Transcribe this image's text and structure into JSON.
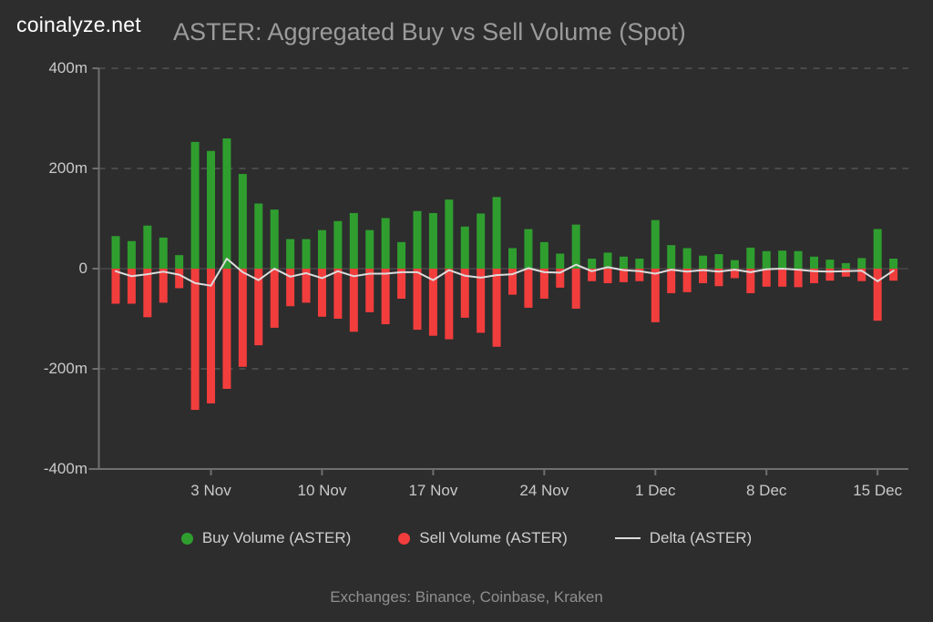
{
  "header": {
    "logo": "coinalyze.net",
    "title": "ASTER: Aggregated Buy vs Sell Volume (Spot)"
  },
  "legend": {
    "buy": "Buy Volume (ASTER)",
    "sell": "Sell Volume (ASTER)",
    "delta": "Delta (ASTER)"
  },
  "footer": {
    "exchanges_note": "Exchanges: Binance, Coinbase, Kraken"
  },
  "colors": {
    "background": "#2d2d2d",
    "buy": "#2f9e2f",
    "sell": "#f23d3d",
    "delta_line": "#dcdcdc",
    "grid_dashed": "#4a4a4a",
    "zero_line": "#484848",
    "axis": "#6f6f6f",
    "logo_text": "#ffffff",
    "title_text": "#9b9b9b",
    "axis_text": "#c9c9c9",
    "legend_text": "#cfcfcf",
    "footer_text": "#8f8f8f"
  },
  "chart_data": {
    "type": "bar",
    "title": "ASTER: Aggregated Buy vs Sell Volume (Spot)",
    "unit": "millions",
    "ylim": [
      -400,
      400
    ],
    "grid": "horizontal-dashed",
    "legend_position": "bottom",
    "y_ticks": [
      {
        "value": 400,
        "label": "400m"
      },
      {
        "value": 200,
        "label": "200m"
      },
      {
        "value": 0,
        "label": "0"
      },
      {
        "value": -200,
        "label": "-200m"
      },
      {
        "value": -400,
        "label": "-400m"
      }
    ],
    "x_ticks": [
      {
        "index": 6,
        "label": "3 Nov"
      },
      {
        "index": 13,
        "label": "10 Nov"
      },
      {
        "index": 20,
        "label": "17 Nov"
      },
      {
        "index": 27,
        "label": "24 Nov"
      },
      {
        "index": 34,
        "label": "1 Dec"
      },
      {
        "index": 41,
        "label": "8 Dec"
      },
      {
        "index": 48,
        "label": "15 Dec"
      }
    ],
    "series": [
      {
        "name": "Buy Volume (ASTER)",
        "type": "bar",
        "color_key": "buy",
        "values": [
          65,
          55,
          86,
          62,
          27,
          253,
          235,
          260,
          189,
          130,
          118,
          59,
          59,
          77,
          95,
          111,
          77,
          101,
          53,
          115,
          111,
          138,
          84,
          110,
          143,
          41,
          79,
          53,
          30,
          88,
          20,
          32,
          24,
          20,
          97,
          47,
          41,
          26,
          29,
          17,
          42,
          35,
          36,
          35,
          24,
          18,
          11,
          21,
          79,
          20
        ]
      },
      {
        "name": "Sell Volume (ASTER)",
        "type": "bar",
        "color_key": "sell",
        "values": [
          -70,
          -70,
          -97,
          -68,
          -39,
          -282,
          -269,
          -240,
          -196,
          -153,
          -118,
          -75,
          -68,
          -96,
          -100,
          -126,
          -87,
          -111,
          -60,
          -122,
          -134,
          -141,
          -98,
          -128,
          -156,
          -52,
          -78,
          -60,
          -38,
          -80,
          -25,
          -29,
          -27,
          -25,
          -107,
          -49,
          -47,
          -29,
          -35,
          -19,
          -49,
          -36,
          -36,
          -37,
          -29,
          -24,
          -16,
          -25,
          -104,
          -24
        ]
      },
      {
        "name": "Delta (ASTER)",
        "type": "line",
        "color_key": "delta_line",
        "values": [
          -5,
          -15,
          -11,
          -6,
          -12,
          -29,
          -34,
          20,
          -7,
          -23,
          0,
          -16,
          -9,
          -19,
          -5,
          -15,
          -10,
          -10,
          -7,
          -7,
          -23,
          -3,
          -14,
          -18,
          -13,
          -11,
          1,
          -7,
          -8,
          8,
          -5,
          3,
          -3,
          -5,
          -10,
          -2,
          -6,
          -3,
          -6,
          -2,
          -7,
          -1,
          0,
          -2,
          -5,
          -6,
          -5,
          -4,
          -25,
          -4
        ]
      }
    ]
  }
}
